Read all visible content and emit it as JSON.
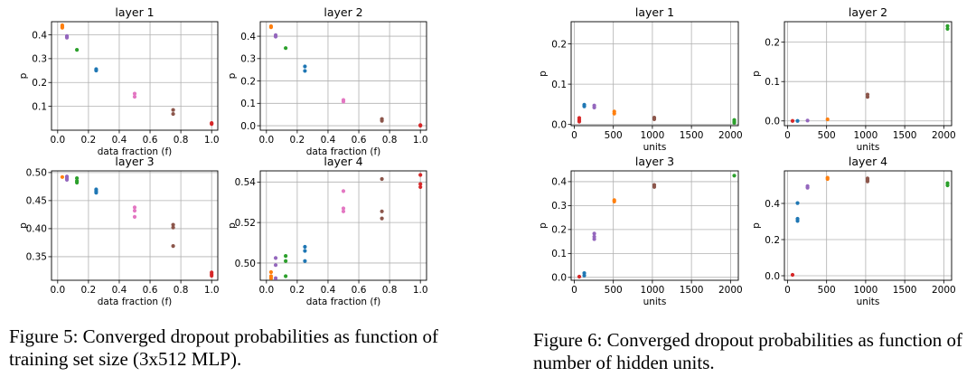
{
  "palette": {
    "blue": "#1f77b4",
    "orange": "#ff7f0e",
    "green": "#2ca02c",
    "red": "#d62728",
    "purple": "#9467bd",
    "brown": "#8c564b",
    "pink": "#e377c2"
  },
  "captions": {
    "fig5": "Figure 5: Converged dropout probabilities as function of training set size (3x512 MLP).",
    "fig6": "Figure 6: Converged dropout probabilities as function of number of hidden units."
  },
  "chart_data": [
    {
      "type": "scatter",
      "figure": "5",
      "title": "layer 1",
      "xlabel": "data fraction (f)",
      "ylabel": "p",
      "xlim": [
        -0.04,
        1.04
      ],
      "ylim": [
        0.0,
        0.455
      ],
      "xticks": [
        {
          "v": 0.0,
          "t": "0.0"
        },
        {
          "v": 0.2,
          "t": "0.2"
        },
        {
          "v": 0.4,
          "t": "0.4"
        },
        {
          "v": 0.6,
          "t": "0.6"
        },
        {
          "v": 0.8,
          "t": "0.8"
        },
        {
          "v": 1.0,
          "t": "1.0"
        }
      ],
      "yticks": [
        {
          "v": 0.1,
          "t": "0.1"
        },
        {
          "v": 0.2,
          "t": "0.2"
        },
        {
          "v": 0.3,
          "t": "0.3"
        },
        {
          "v": 0.4,
          "t": "0.4"
        }
      ],
      "grid": true,
      "points": [
        {
          "x": 0.03,
          "y": 0.435,
          "c": "orange"
        },
        {
          "x": 0.03,
          "y": 0.43,
          "c": "orange"
        },
        {
          "x": 0.03,
          "y": 0.44,
          "c": "orange"
        },
        {
          "x": 0.06,
          "y": 0.395,
          "c": "purple"
        },
        {
          "x": 0.06,
          "y": 0.388,
          "c": "purple"
        },
        {
          "x": 0.06,
          "y": 0.392,
          "c": "purple"
        },
        {
          "x": 0.125,
          "y": 0.337,
          "c": "green"
        },
        {
          "x": 0.25,
          "y": 0.256,
          "c": "blue"
        },
        {
          "x": 0.25,
          "y": 0.25,
          "c": "blue"
        },
        {
          "x": 0.5,
          "y": 0.153,
          "c": "pink"
        },
        {
          "x": 0.5,
          "y": 0.14,
          "c": "pink"
        },
        {
          "x": 0.75,
          "y": 0.085,
          "c": "brown"
        },
        {
          "x": 0.75,
          "y": 0.068,
          "c": "brown"
        },
        {
          "x": 1.0,
          "y": 0.03,
          "c": "red"
        },
        {
          "x": 1.0,
          "y": 0.026,
          "c": "red"
        }
      ]
    },
    {
      "type": "scatter",
      "figure": "5",
      "title": "layer 2",
      "xlabel": "data fraction (f)",
      "ylabel": "p",
      "xlim": [
        -0.04,
        1.04
      ],
      "ylim": [
        -0.02,
        0.465
      ],
      "xticks": [
        {
          "v": 0.0,
          "t": "0.0"
        },
        {
          "v": 0.2,
          "t": "0.2"
        },
        {
          "v": 0.4,
          "t": "0.4"
        },
        {
          "v": 0.6,
          "t": "0.6"
        },
        {
          "v": 0.8,
          "t": "0.8"
        },
        {
          "v": 1.0,
          "t": "1.0"
        }
      ],
      "yticks": [
        {
          "v": 0.0,
          "t": "0.0"
        },
        {
          "v": 0.1,
          "t": "0.1"
        },
        {
          "v": 0.2,
          "t": "0.2"
        },
        {
          "v": 0.3,
          "t": "0.3"
        },
        {
          "v": 0.4,
          "t": "0.4"
        }
      ],
      "grid": true,
      "points": [
        {
          "x": 0.03,
          "y": 0.445,
          "c": "orange"
        },
        {
          "x": 0.03,
          "y": 0.44,
          "c": "orange"
        },
        {
          "x": 0.06,
          "y": 0.405,
          "c": "purple"
        },
        {
          "x": 0.06,
          "y": 0.398,
          "c": "purple"
        },
        {
          "x": 0.125,
          "y": 0.347,
          "c": "green"
        },
        {
          "x": 0.25,
          "y": 0.265,
          "c": "blue"
        },
        {
          "x": 0.25,
          "y": 0.245,
          "c": "blue"
        },
        {
          "x": 0.5,
          "y": 0.115,
          "c": "pink"
        },
        {
          "x": 0.5,
          "y": 0.108,
          "c": "pink"
        },
        {
          "x": 0.75,
          "y": 0.03,
          "c": "brown"
        },
        {
          "x": 0.75,
          "y": 0.022,
          "c": "brown"
        },
        {
          "x": 1.0,
          "y": 0.003,
          "c": "red"
        },
        {
          "x": 1.0,
          "y": 0.0,
          "c": "red"
        }
      ]
    },
    {
      "type": "scatter",
      "figure": "5",
      "title": "layer 3",
      "xlabel": "data fraction (f)",
      "ylabel": "p",
      "xlim": [
        -0.04,
        1.04
      ],
      "ylim": [
        0.308,
        0.503
      ],
      "xticks": [
        {
          "v": 0.0,
          "t": "0.0"
        },
        {
          "v": 0.2,
          "t": "0.2"
        },
        {
          "v": 0.4,
          "t": "0.4"
        },
        {
          "v": 0.6,
          "t": "0.6"
        },
        {
          "v": 0.8,
          "t": "0.8"
        },
        {
          "v": 1.0,
          "t": "1.0"
        }
      ],
      "yticks": [
        {
          "v": 0.35,
          "t": "0.35"
        },
        {
          "v": 0.4,
          "t": "0.40"
        },
        {
          "v": 0.45,
          "t": "0.45"
        },
        {
          "v": 0.5,
          "t": "0.50"
        }
      ],
      "grid": true,
      "points": [
        {
          "x": 0.03,
          "y": 0.492,
          "c": "orange"
        },
        {
          "x": 0.06,
          "y": 0.493,
          "c": "purple"
        },
        {
          "x": 0.06,
          "y": 0.49,
          "c": "purple"
        },
        {
          "x": 0.06,
          "y": 0.487,
          "c": "purple"
        },
        {
          "x": 0.125,
          "y": 0.49,
          "c": "green"
        },
        {
          "x": 0.125,
          "y": 0.485,
          "c": "green"
        },
        {
          "x": 0.125,
          "y": 0.482,
          "c": "green"
        },
        {
          "x": 0.25,
          "y": 0.47,
          "c": "blue"
        },
        {
          "x": 0.25,
          "y": 0.467,
          "c": "blue"
        },
        {
          "x": 0.25,
          "y": 0.464,
          "c": "blue"
        },
        {
          "x": 0.5,
          "y": 0.438,
          "c": "pink"
        },
        {
          "x": 0.5,
          "y": 0.432,
          "c": "pink"
        },
        {
          "x": 0.5,
          "y": 0.421,
          "c": "pink"
        },
        {
          "x": 0.75,
          "y": 0.407,
          "c": "brown"
        },
        {
          "x": 0.75,
          "y": 0.402,
          "c": "brown"
        },
        {
          "x": 0.75,
          "y": 0.369,
          "c": "brown"
        },
        {
          "x": 1.0,
          "y": 0.322,
          "c": "red"
        },
        {
          "x": 1.0,
          "y": 0.319,
          "c": "red"
        },
        {
          "x": 1.0,
          "y": 0.316,
          "c": "red"
        }
      ]
    },
    {
      "type": "scatter",
      "figure": "5",
      "title": "layer 4",
      "xlabel": "data fraction (f)",
      "ylabel": "p",
      "xlim": [
        -0.04,
        1.04
      ],
      "ylim": [
        0.4915,
        0.5455
      ],
      "xticks": [
        {
          "v": 0.0,
          "t": "0.0"
        },
        {
          "v": 0.2,
          "t": "0.2"
        },
        {
          "v": 0.4,
          "t": "0.4"
        },
        {
          "v": 0.6,
          "t": "0.6"
        },
        {
          "v": 0.8,
          "t": "0.8"
        },
        {
          "v": 1.0,
          "t": "1.0"
        }
      ],
      "yticks": [
        {
          "v": 0.5,
          "t": "0.50"
        },
        {
          "v": 0.52,
          "t": "0.52"
        },
        {
          "v": 0.54,
          "t": "0.54"
        }
      ],
      "grid": true,
      "points": [
        {
          "x": 0.03,
          "y": 0.4955,
          "c": "orange"
        },
        {
          "x": 0.03,
          "y": 0.4935,
          "c": "orange"
        },
        {
          "x": 0.03,
          "y": 0.4925,
          "c": "orange"
        },
        {
          "x": 0.06,
          "y": 0.5025,
          "c": "purple"
        },
        {
          "x": 0.06,
          "y": 0.499,
          "c": "purple"
        },
        {
          "x": 0.06,
          "y": 0.4925,
          "c": "purple"
        },
        {
          "x": 0.125,
          "y": 0.5035,
          "c": "green"
        },
        {
          "x": 0.125,
          "y": 0.501,
          "c": "green"
        },
        {
          "x": 0.125,
          "y": 0.4935,
          "c": "green"
        },
        {
          "x": 0.25,
          "y": 0.508,
          "c": "blue"
        },
        {
          "x": 0.25,
          "y": 0.506,
          "c": "blue"
        },
        {
          "x": 0.25,
          "y": 0.501,
          "c": "blue"
        },
        {
          "x": 0.5,
          "y": 0.5355,
          "c": "pink"
        },
        {
          "x": 0.5,
          "y": 0.527,
          "c": "pink"
        },
        {
          "x": 0.5,
          "y": 0.5255,
          "c": "pink"
        },
        {
          "x": 0.75,
          "y": 0.5415,
          "c": "brown"
        },
        {
          "x": 0.75,
          "y": 0.5255,
          "c": "brown"
        },
        {
          "x": 0.75,
          "y": 0.522,
          "c": "brown"
        },
        {
          "x": 1.0,
          "y": 0.5435,
          "c": "red"
        },
        {
          "x": 1.0,
          "y": 0.539,
          "c": "red"
        },
        {
          "x": 1.0,
          "y": 0.5375,
          "c": "red"
        }
      ]
    },
    {
      "type": "scatter",
      "figure": "6",
      "title": "layer 1",
      "xlabel": "units",
      "ylabel": "p",
      "xlim": [
        -40,
        2100
      ],
      "ylim": [
        -0.003,
        0.255
      ],
      "xticks": [
        {
          "v": 0,
          "t": "0"
        },
        {
          "v": 500,
          "t": "500"
        },
        {
          "v": 1000,
          "t": "1000"
        },
        {
          "v": 1500,
          "t": "1500"
        },
        {
          "v": 2000,
          "t": "2000"
        }
      ],
      "yticks": [
        {
          "v": 0.0,
          "t": "0.0"
        },
        {
          "v": 0.1,
          "t": "0.1"
        },
        {
          "v": 0.2,
          "t": "0.2"
        }
      ],
      "grid": true,
      "points": [
        {
          "x": 64,
          "y": 0.016,
          "c": "red"
        },
        {
          "x": 64,
          "y": 0.011,
          "c": "red"
        },
        {
          "x": 64,
          "y": 0.007,
          "c": "red"
        },
        {
          "x": 128,
          "y": 0.049,
          "c": "blue"
        },
        {
          "x": 128,
          "y": 0.045,
          "c": "blue"
        },
        {
          "x": 256,
          "y": 0.047,
          "c": "purple"
        },
        {
          "x": 256,
          "y": 0.042,
          "c": "purple"
        },
        {
          "x": 512,
          "y": 0.032,
          "c": "orange"
        },
        {
          "x": 512,
          "y": 0.027,
          "c": "orange"
        },
        {
          "x": 1024,
          "y": 0.017,
          "c": "brown"
        },
        {
          "x": 1024,
          "y": 0.013,
          "c": "brown"
        },
        {
          "x": 2048,
          "y": 0.011,
          "c": "green"
        },
        {
          "x": 2048,
          "y": 0.007,
          "c": "green"
        },
        {
          "x": 2048,
          "y": 0.004,
          "c": "green"
        }
      ]
    },
    {
      "type": "scatter",
      "figure": "6",
      "title": "layer 2",
      "xlabel": "units",
      "ylabel": "p",
      "xlim": [
        -40,
        2100
      ],
      "ylim": [
        -0.012,
        0.252
      ],
      "xticks": [
        {
          "v": 0,
          "t": "0"
        },
        {
          "v": 500,
          "t": "500"
        },
        {
          "v": 1000,
          "t": "1000"
        },
        {
          "v": 1500,
          "t": "1500"
        },
        {
          "v": 2000,
          "t": "2000"
        }
      ],
      "yticks": [
        {
          "v": 0.0,
          "t": "0.0"
        },
        {
          "v": 0.1,
          "t": "0.1"
        },
        {
          "v": 0.2,
          "t": "0.2"
        }
      ],
      "grid": true,
      "points": [
        {
          "x": 64,
          "y": 0.0,
          "c": "red"
        },
        {
          "x": 128,
          "y": 0.0,
          "c": "blue"
        },
        {
          "x": 256,
          "y": 0.001,
          "c": "purple"
        },
        {
          "x": 512,
          "y": 0.004,
          "c": "orange"
        },
        {
          "x": 1024,
          "y": 0.067,
          "c": "brown"
        },
        {
          "x": 1024,
          "y": 0.061,
          "c": "brown"
        },
        {
          "x": 2048,
          "y": 0.241,
          "c": "green"
        },
        {
          "x": 2048,
          "y": 0.234,
          "c": "green"
        }
      ]
    },
    {
      "type": "scatter",
      "figure": "6",
      "title": "layer 3",
      "xlabel": "units",
      "ylabel": "p",
      "xlim": [
        -40,
        2100
      ],
      "ylim": [
        -0.012,
        0.445
      ],
      "xticks": [
        {
          "v": 0,
          "t": "0"
        },
        {
          "v": 500,
          "t": "500"
        },
        {
          "v": 1000,
          "t": "1000"
        },
        {
          "v": 1500,
          "t": "1500"
        },
        {
          "v": 2000,
          "t": "2000"
        }
      ],
      "yticks": [
        {
          "v": 0.0,
          "t": "0.0"
        },
        {
          "v": 0.1,
          "t": "0.1"
        },
        {
          "v": 0.2,
          "t": "0.2"
        },
        {
          "v": 0.3,
          "t": "0.3"
        },
        {
          "v": 0.4,
          "t": "0.4"
        }
      ],
      "grid": true,
      "points": [
        {
          "x": 64,
          "y": 0.003,
          "c": "red"
        },
        {
          "x": 128,
          "y": 0.018,
          "c": "blue"
        },
        {
          "x": 128,
          "y": 0.008,
          "c": "blue"
        },
        {
          "x": 256,
          "y": 0.183,
          "c": "purple"
        },
        {
          "x": 256,
          "y": 0.17,
          "c": "purple"
        },
        {
          "x": 256,
          "y": 0.16,
          "c": "purple"
        },
        {
          "x": 512,
          "y": 0.323,
          "c": "orange"
        },
        {
          "x": 512,
          "y": 0.317,
          "c": "orange"
        },
        {
          "x": 1024,
          "y": 0.386,
          "c": "brown"
        },
        {
          "x": 1024,
          "y": 0.378,
          "c": "brown"
        },
        {
          "x": 2048,
          "y": 0.425,
          "c": "green"
        }
      ]
    },
    {
      "type": "scatter",
      "figure": "6",
      "title": "layer 4",
      "xlabel": "units",
      "ylabel": "p",
      "xlim": [
        -40,
        2100
      ],
      "ylim": [
        -0.025,
        0.58
      ],
      "xticks": [
        {
          "v": 0,
          "t": "0"
        },
        {
          "v": 500,
          "t": "500"
        },
        {
          "v": 1000,
          "t": "1000"
        },
        {
          "v": 1500,
          "t": "1500"
        },
        {
          "v": 2000,
          "t": "2000"
        }
      ],
      "yticks": [
        {
          "v": 0.0,
          "t": "0.0"
        },
        {
          "v": 0.2,
          "t": "0.2"
        },
        {
          "v": 0.4,
          "t": "0.4"
        }
      ],
      "grid": true,
      "points": [
        {
          "x": 64,
          "y": 0.005,
          "c": "red"
        },
        {
          "x": 128,
          "y": 0.402,
          "c": "blue"
        },
        {
          "x": 128,
          "y": 0.315,
          "c": "blue"
        },
        {
          "x": 128,
          "y": 0.303,
          "c": "blue"
        },
        {
          "x": 256,
          "y": 0.496,
          "c": "purple"
        },
        {
          "x": 256,
          "y": 0.487,
          "c": "purple"
        },
        {
          "x": 512,
          "y": 0.542,
          "c": "orange"
        },
        {
          "x": 512,
          "y": 0.535,
          "c": "orange"
        },
        {
          "x": 1024,
          "y": 0.538,
          "c": "brown"
        },
        {
          "x": 1024,
          "y": 0.53,
          "c": "brown"
        },
        {
          "x": 1024,
          "y": 0.522,
          "c": "brown"
        },
        {
          "x": 2048,
          "y": 0.512,
          "c": "green"
        },
        {
          "x": 2048,
          "y": 0.5,
          "c": "green"
        }
      ]
    }
  ]
}
